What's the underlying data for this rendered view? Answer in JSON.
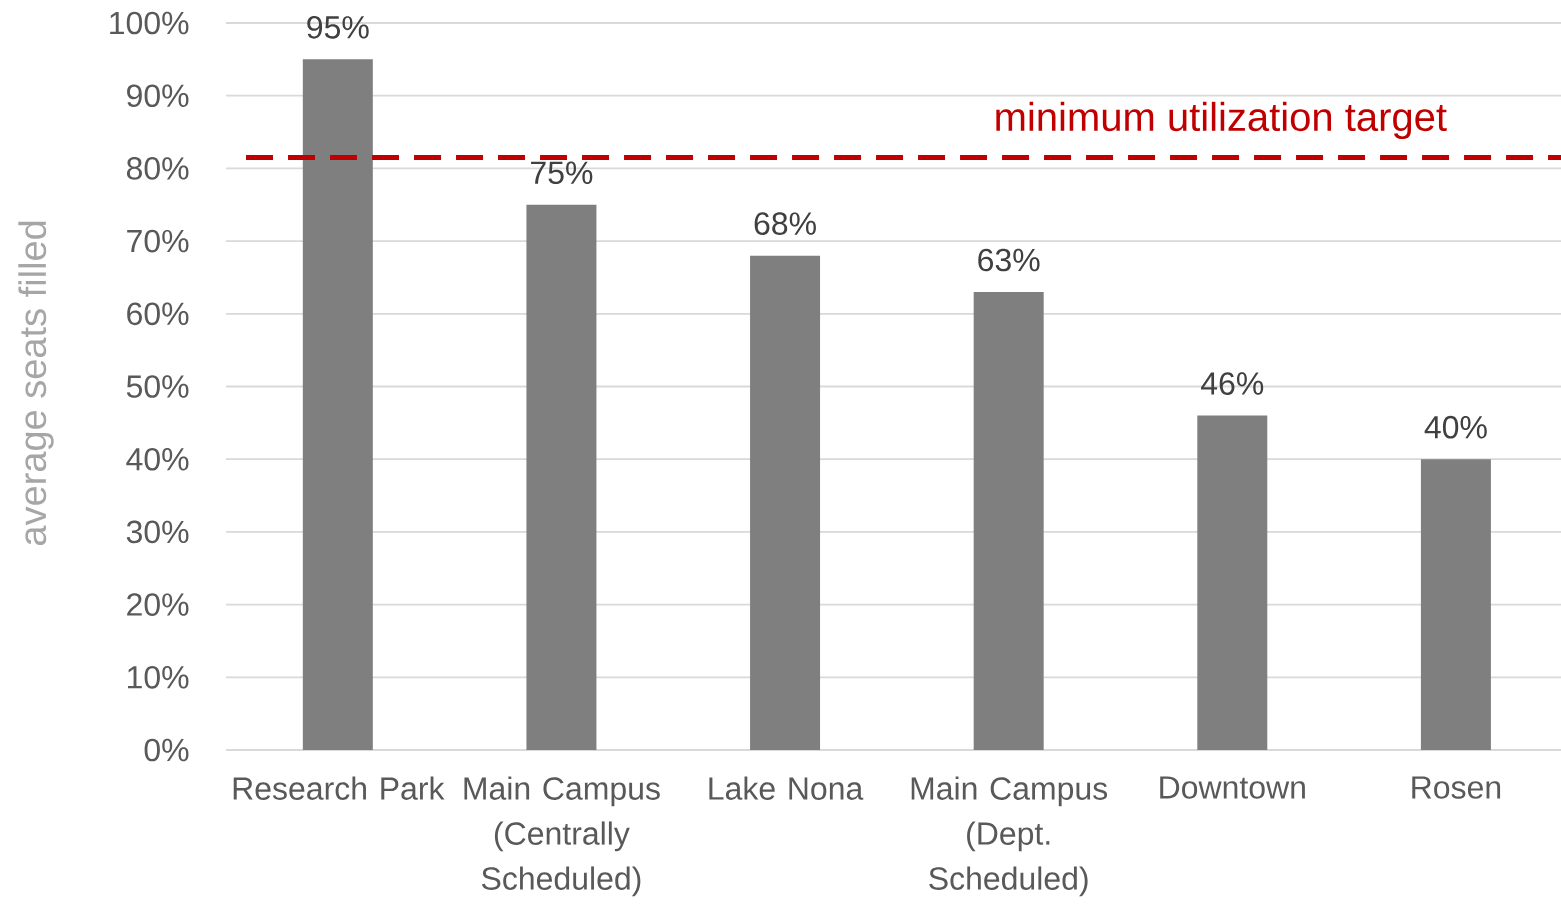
{
  "chart_data": {
    "type": "bar",
    "ylabel": "average seats filled",
    "categories": [
      "Research Park",
      "Main Campus (Centrally Scheduled)",
      "Lake Nona",
      "Main Campus (Dept. Scheduled)",
      "Downtown",
      "Rosen"
    ],
    "values": [
      95,
      75,
      68,
      63,
      46,
      40
    ],
    "value_labels": [
      "95%",
      "75%",
      "68%",
      "63%",
      "46%",
      "40%"
    ],
    "color": "#7f7f7f",
    "ylim": [
      0,
      100
    ],
    "yticks": [
      {
        "value": 0,
        "label": "0%"
      },
      {
        "value": 10,
        "label": "10%"
      },
      {
        "value": 20,
        "label": "20%"
      },
      {
        "value": 30,
        "label": "30%"
      },
      {
        "value": 40,
        "label": "40%"
      },
      {
        "value": 50,
        "label": "50%"
      },
      {
        "value": 60,
        "label": "60%"
      },
      {
        "value": 70,
        "label": "70%"
      },
      {
        "value": 80,
        "label": "80%"
      },
      {
        "value": 90,
        "label": "90%"
      },
      {
        "value": 100,
        "label": "100%"
      }
    ],
    "grid": "y",
    "ref_lines": [
      {
        "axis": "y",
        "value": 81.5,
        "label": "minimum utilization target",
        "color": "#c00000",
        "line_style": "dashed"
      }
    ]
  }
}
